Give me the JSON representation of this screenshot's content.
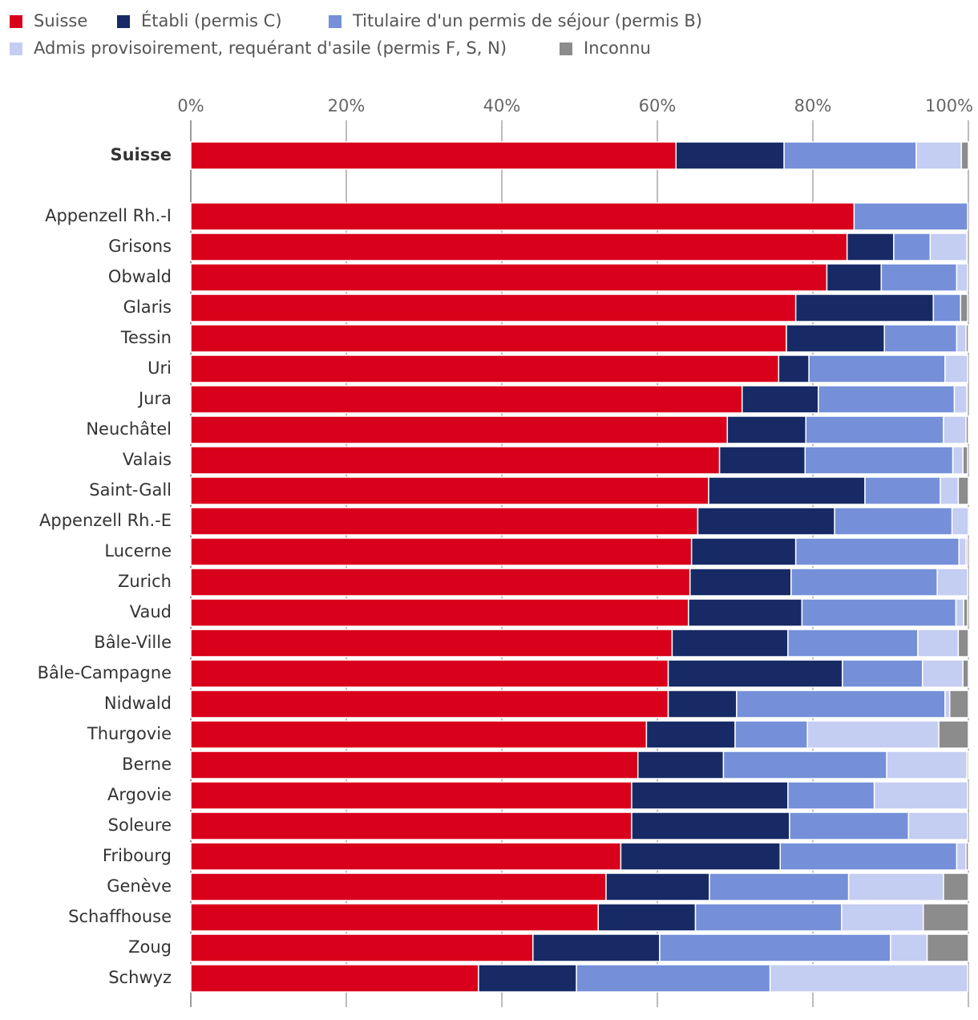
{
  "chart_data": {
    "type": "stacked-bar-horizontal",
    "categories": [
      "Suisse",
      "Appenzell Rh.-I",
      "Grisons",
      "Obwald",
      "Glaris",
      "Tessin",
      "Uri",
      "Jura",
      "Neuchâtel",
      "Valais",
      "Saint-Gall",
      "Appenzell Rh.-E",
      "Lucerne",
      "Zurich",
      "Vaud",
      "Bâle-Ville",
      "Bâle-Campagne",
      "Nidwald",
      "Thurgovie",
      "Berne",
      "Argovie",
      "Soleure",
      "Fribourg",
      "Genève",
      "Schaffhouse",
      "Zoug",
      "Schwyz"
    ],
    "series": [
      {
        "name": "Suisse",
        "color": "#d9001b",
        "values": [
          62.4,
          85.3,
          84.4,
          81.8,
          77.8,
          76.6,
          75.6,
          70.9,
          69.0,
          68.0,
          66.6,
          65.2,
          64.4,
          64.2,
          64.0,
          61.9,
          61.4,
          61.4,
          58.6,
          57.5,
          56.7,
          56.7,
          55.3,
          53.4,
          52.4,
          44.0,
          37.0
        ]
      },
      {
        "name": "Établi (permis C)",
        "color": "#172a66",
        "values": [
          13.9,
          0,
          6.0,
          7.0,
          17.7,
          12.6,
          3.9,
          9.8,
          10.1,
          11.0,
          20.1,
          17.6,
          13.4,
          13.0,
          14.6,
          14.9,
          22.4,
          8.8,
          11.4,
          11.0,
          20.1,
          20.3,
          20.5,
          13.3,
          12.5,
          16.3,
          12.6
        ]
      },
      {
        "name": "Titulaire d'un permis de séjour (permis B)",
        "color": "#7590d9",
        "values": [
          17.0,
          14.6,
          4.7,
          9.7,
          3.5,
          9.3,
          17.5,
          17.5,
          17.7,
          19.0,
          9.7,
          15.1,
          21.0,
          18.8,
          19.8,
          16.7,
          10.3,
          26.8,
          9.3,
          21.0,
          11.1,
          15.3,
          22.7,
          17.9,
          18.8,
          29.7,
          24.9
        ]
      },
      {
        "name": "Admis provisoirement, requérant d'asile (permis F, S, N)",
        "color": "#c4cdf2",
        "values": [
          5.8,
          0,
          4.7,
          1.4,
          0,
          1.2,
          2.9,
          1.6,
          2.9,
          1.3,
          2.3,
          2.1,
          0.9,
          3.9,
          1.0,
          5.2,
          5.2,
          0.6,
          16.9,
          10.3,
          12.0,
          7.6,
          1.2,
          12.2,
          10.5,
          4.7,
          25.4
        ]
      },
      {
        "name": "Inconnu",
        "color": "#8c8c8c",
        "values": [
          0.9,
          0,
          0,
          0,
          0.9,
          0.3,
          0,
          0,
          0.3,
          0.6,
          1.3,
          0,
          0.2,
          0,
          0.5,
          1.3,
          0.7,
          2.4,
          3.8,
          0.2,
          0,
          0,
          0.3,
          3.2,
          5.8,
          5.3,
          0
        ]
      }
    ],
    "xlim": [
      0,
      100
    ],
    "xticks": [
      {
        "value": 0,
        "label": "0%"
      },
      {
        "value": 20,
        "label": "20%"
      },
      {
        "value": 40,
        "label": "40%"
      },
      {
        "value": 60,
        "label": "60%"
      },
      {
        "value": 80,
        "label": "80%"
      },
      {
        "value": 100,
        "label": "100%"
      }
    ],
    "grid": true,
    "legend": "top"
  }
}
